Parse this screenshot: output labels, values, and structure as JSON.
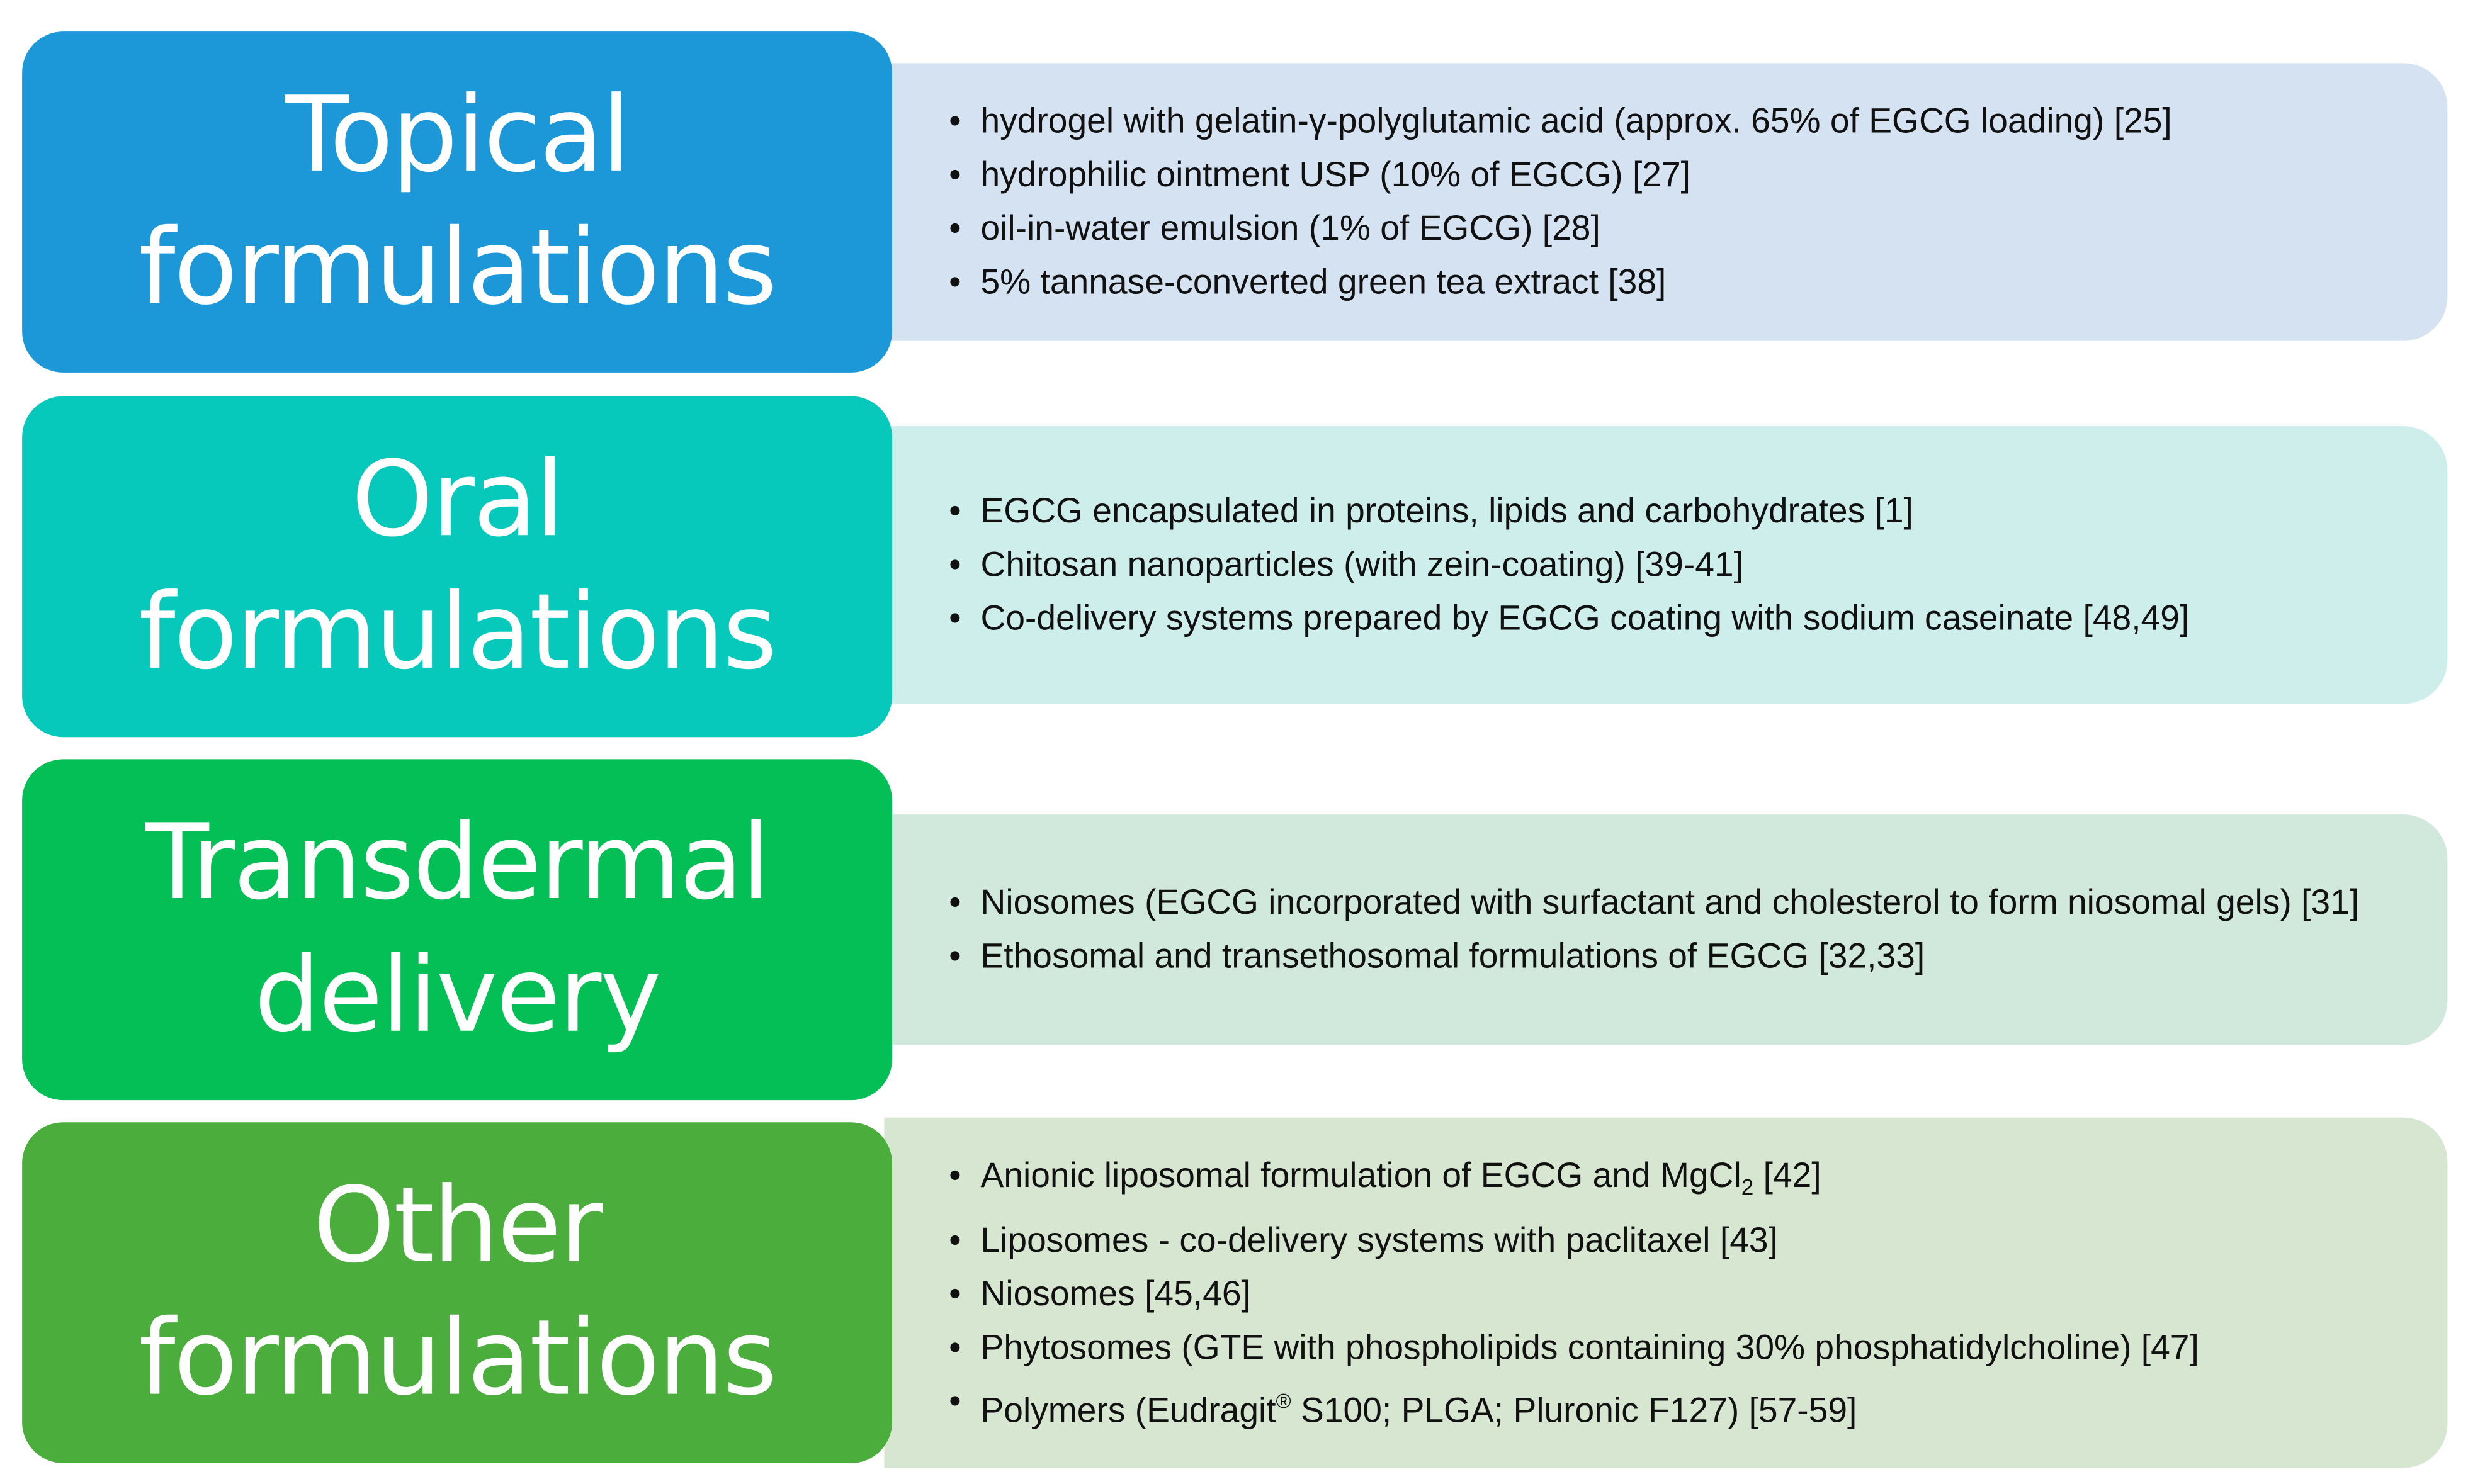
{
  "rows": [
    {
      "label": [
        "Topical",
        "formulations"
      ],
      "items": [
        [
          "hydrogel with gelatin-γ-polyglutamic acid  (approx. 65% of EGCG loading) [25]"
        ],
        [
          "hydrophilic ointment USP (10% of EGCG) [27]"
        ],
        [
          "oil-in-water emulsion (1% of EGCG) [28]"
        ],
        [
          "5% tannase-converted  green tea extract [38]"
        ]
      ]
    },
    {
      "label": [
        "Oral",
        "formulations"
      ],
      "items": [
        [
          "EGCG encapsulated in proteins, lipids and carbohydrates [1]"
        ],
        [
          "Chitosan nanoparticles (with zein-coating) [39-41]"
        ],
        [
          "Co-delivery  systems prepared by EGCG coating with sodium caseinate [48,49]"
        ]
      ]
    },
    {
      "label": [
        "Transdermal",
        "delivery"
      ],
      "items": [
        [
          "Niosomes (EGCG incorporated with surfactant and cholesterol to form niosomal gels) [31]"
        ],
        [
          "Ethosomal and transethosomal formulations of EGCG [32,33]"
        ]
      ]
    },
    {
      "label": [
        "Other",
        "formulations"
      ],
      "items": [
        [
          "Anionic liposomal formulation of EGCG and MgCl",
          {
            "sub": "2"
          },
          " [42]"
        ],
        [
          "Liposomes  - co-delivery systems with paclitaxel [43]"
        ],
        [
          "Niosomes [45,46]"
        ],
        [
          "Phytosomes (GTE with phospholipids containing 30% phosphatidylcholine) [47]"
        ],
        [
          "Polymers (Eudragit",
          {
            "sup": "®"
          },
          "  S100; PLGA; Pluronic F127) [57-59]"
        ]
      ]
    }
  ]
}
